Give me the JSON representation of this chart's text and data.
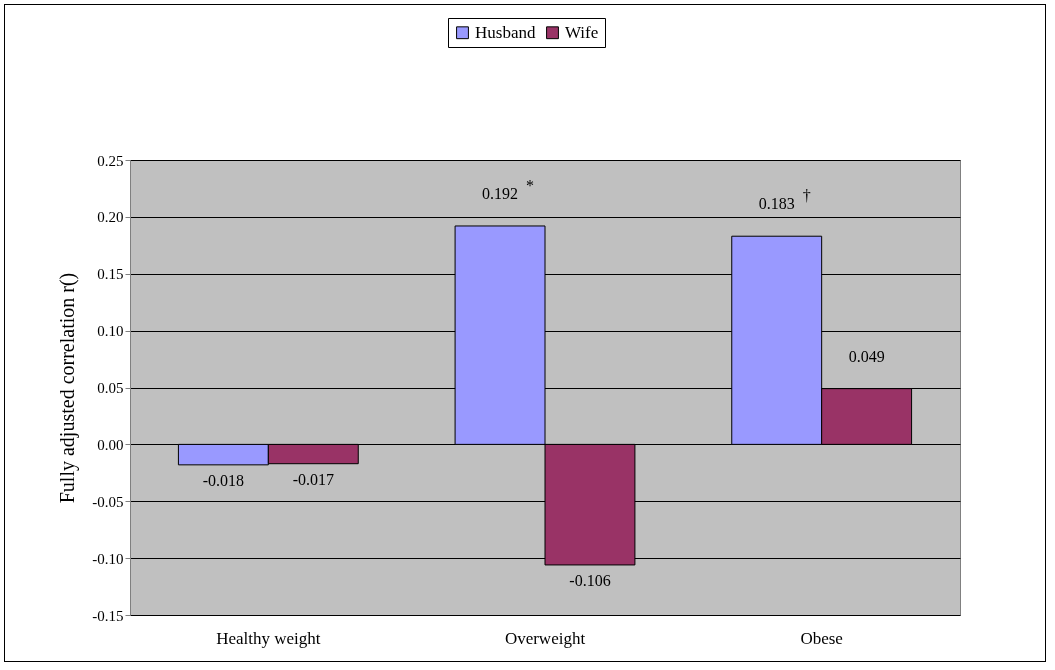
{
  "chart_data": {
    "type": "bar",
    "ylabel": "Fully adjusted correlation r()",
    "categories": [
      "Healthy weight",
      "Overweight",
      "Obese"
    ],
    "series": [
      {
        "name": "Husband",
        "color": "#9999ff",
        "values": [
          -0.018,
          0.192,
          0.183
        ]
      },
      {
        "name": "Wife",
        "color": "#993366",
        "values": [
          -0.017,
          -0.106,
          0.049
        ]
      }
    ],
    "ylim": [
      -0.15,
      0.25
    ],
    "yticks": [
      {
        "value": -0.15,
        "label": "-0.15"
      },
      {
        "value": -0.1,
        "label": "-0.10"
      },
      {
        "value": -0.05,
        "label": "-0.05"
      },
      {
        "value": 0,
        "label": "0.00"
      },
      {
        "value": 0.05,
        "label": "0.05"
      },
      {
        "value": 0.1,
        "label": "0.10"
      },
      {
        "value": 0.15,
        "label": "0.15"
      },
      {
        "value": 0.2,
        "label": "0.20"
      },
      {
        "value": 0.25,
        "label": "0.25"
      }
    ],
    "grid": "y",
    "legend": "top",
    "data_labels": true,
    "annotations": [
      {
        "text": "*",
        "x": "Overweight",
        "y": 0.192
      },
      {
        "text": "†",
        "x": "Obese",
        "y": 0.183
      }
    ]
  }
}
